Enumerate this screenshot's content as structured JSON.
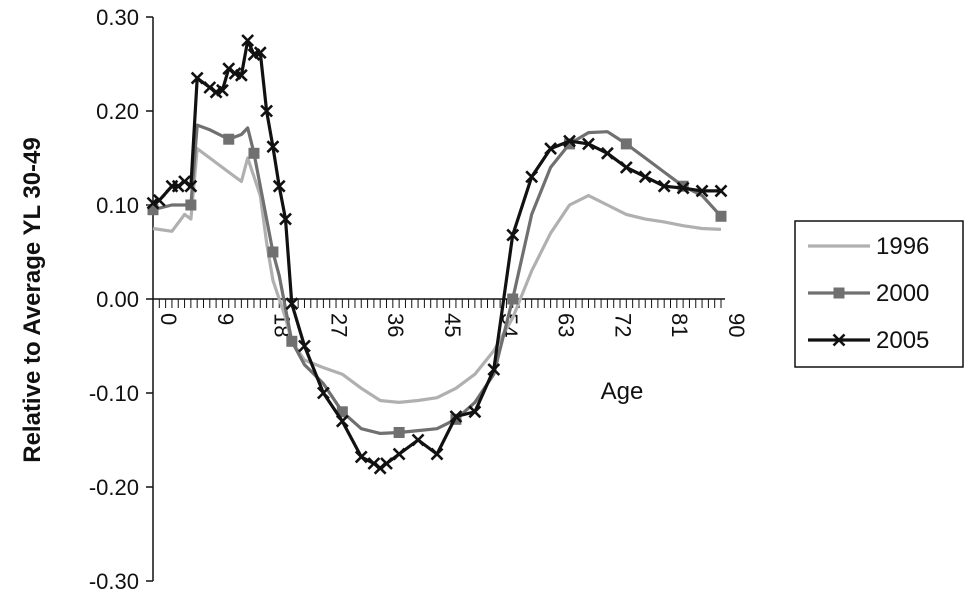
{
  "chart_data": {
    "type": "line",
    "title": "",
    "xlabel": "Age",
    "ylabel": "Relative to Average YL 30-49",
    "xlim": [
      0,
      90
    ],
    "ylim": [
      -0.3,
      0.3
    ],
    "xticks": [
      0,
      9,
      18,
      27,
      36,
      45,
      54,
      63,
      72,
      81,
      90
    ],
    "yticks": [
      -0.3,
      -0.2,
      -0.1,
      0.0,
      0.1,
      0.2,
      0.3
    ],
    "ytick_labels": [
      "-0.30",
      "-0.20",
      "-0.10",
      "0.00",
      "0.10",
      "0.20",
      "0.30"
    ],
    "grid": false,
    "legend_position": "right",
    "series": [
      {
        "name": "1996",
        "color": "#b0b0b0",
        "marker": "none",
        "x": [
          0,
          3,
          5,
          6,
          7,
          9,
          12,
          14,
          15,
          16,
          17,
          18,
          19,
          20,
          21,
          22,
          24,
          27,
          30,
          33,
          36,
          39,
          42,
          45,
          48,
          51,
          54,
          57,
          60,
          63,
          66,
          69,
          72,
          75,
          78,
          81,
          84,
          87,
          90
        ],
        "y": [
          0.075,
          0.072,
          0.09,
          0.085,
          0.16,
          0.15,
          0.135,
          0.125,
          0.15,
          0.13,
          0.11,
          0.06,
          0.02,
          0.0,
          -0.02,
          -0.045,
          -0.065,
          -0.073,
          -0.08,
          -0.095,
          -0.108,
          -0.11,
          -0.108,
          -0.105,
          -0.095,
          -0.08,
          -0.055,
          -0.02,
          0.03,
          0.07,
          0.1,
          0.11,
          0.1,
          0.09,
          0.085,
          0.082,
          0.078,
          0.075,
          0.074
        ]
      },
      {
        "name": "2000",
        "color": "#707070",
        "marker": "square",
        "x": [
          0,
          3,
          5,
          6,
          7,
          9,
          12,
          14,
          15,
          16,
          17,
          18,
          19,
          20,
          21,
          22,
          24,
          27,
          30,
          33,
          36,
          39,
          42,
          45,
          48,
          51,
          54,
          57,
          60,
          63,
          66,
          69,
          72,
          75,
          78,
          81,
          84,
          87,
          90
        ],
        "y": [
          0.095,
          0.1,
          0.1,
          0.1,
          0.185,
          0.18,
          0.17,
          0.175,
          0.182,
          0.155,
          0.12,
          0.085,
          0.05,
          0.025,
          -0.01,
          -0.045,
          -0.07,
          -0.09,
          -0.12,
          -0.138,
          -0.143,
          -0.142,
          -0.14,
          -0.138,
          -0.128,
          -0.11,
          -0.08,
          0.0,
          0.09,
          0.14,
          0.165,
          0.177,
          0.178,
          0.165,
          0.15,
          0.135,
          0.12,
          0.11,
          0.088
        ]
      },
      {
        "name": "2005",
        "color": "#111111",
        "marker": "x",
        "x": [
          0,
          1,
          3,
          4,
          5,
          6,
          7,
          9,
          10,
          11,
          12,
          13,
          14,
          15,
          16,
          17,
          18,
          19,
          20,
          21,
          22,
          24,
          27,
          30,
          33,
          35,
          36,
          37,
          39,
          42,
          45,
          48,
          51,
          54,
          57,
          60,
          63,
          66,
          69,
          72,
          75,
          78,
          81,
          84,
          87,
          90
        ],
        "y": [
          0.102,
          0.105,
          0.12,
          0.12,
          0.125,
          0.12,
          0.235,
          0.225,
          0.22,
          0.222,
          0.245,
          0.24,
          0.238,
          0.275,
          0.26,
          0.262,
          0.2,
          0.162,
          0.12,
          0.085,
          -0.005,
          -0.05,
          -0.1,
          -0.13,
          -0.168,
          -0.175,
          -0.18,
          -0.175,
          -0.165,
          -0.15,
          -0.165,
          -0.125,
          -0.12,
          -0.075,
          0.068,
          0.13,
          0.16,
          0.168,
          0.165,
          0.155,
          0.14,
          0.13,
          0.12,
          0.118,
          0.115,
          0.115
        ]
      }
    ]
  }
}
